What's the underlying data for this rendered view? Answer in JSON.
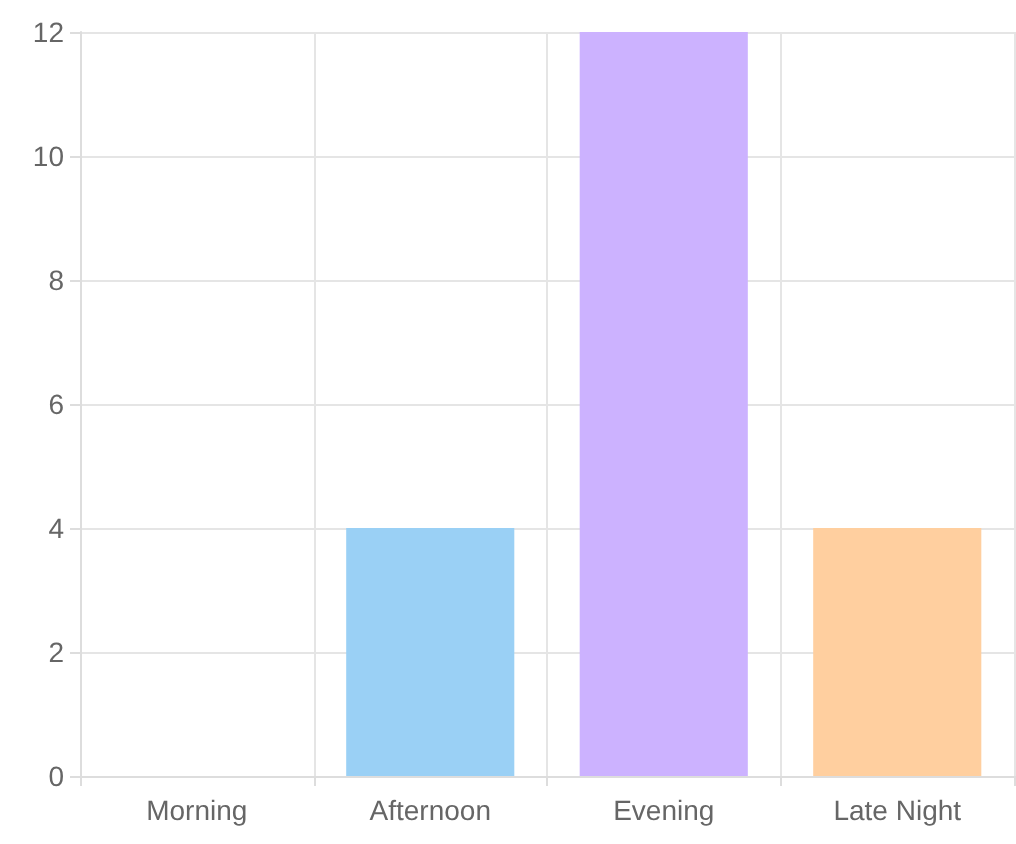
{
  "chart_data": {
    "type": "bar",
    "categories": [
      "Morning",
      "Afternoon",
      "Evening",
      "Late Night"
    ],
    "values": [
      0,
      4,
      12,
      4
    ],
    "colors": [
      "#ffb1c1",
      "#9ad0f5",
      "#ccb2ff",
      "#ffcf9f"
    ],
    "ylim": [
      0,
      12
    ],
    "yticks": [
      0,
      2,
      4,
      6,
      8,
      10,
      12
    ],
    "grid": true
  }
}
